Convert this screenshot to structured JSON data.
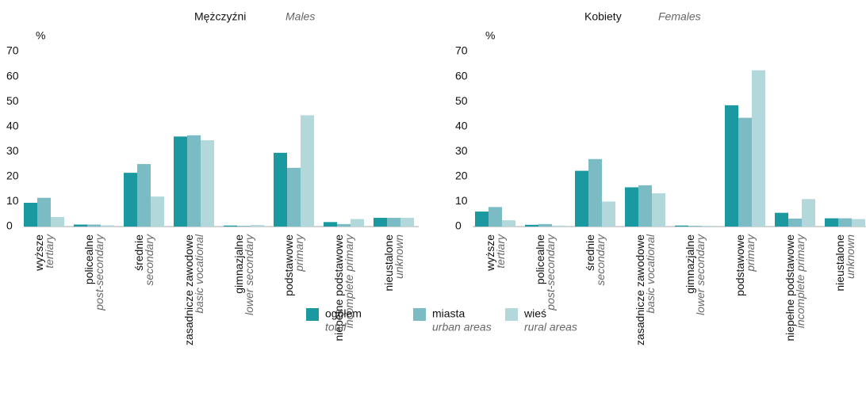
{
  "chart_data": [
    {
      "type": "bar",
      "title": "Mężczyźni",
      "subtitle": "Males",
      "ylabel": "%",
      "categories": [
        "wyższe",
        "policealne",
        "średnie",
        "zasadnicze zawodowe",
        "gimnazjalne",
        "podstawowe",
        "niepełne podstawowe",
        "nieustalone"
      ],
      "categories_en": [
        "tertiary",
        "post-secondary",
        "secondary",
        "basic vocational",
        "lower secondary",
        "primary",
        "incomplete primary",
        "unknown"
      ],
      "ylim": [
        0,
        70
      ],
      "yticks": [
        0,
        10,
        20,
        30,
        40,
        50,
        60,
        70
      ],
      "series": [
        {
          "name": "ogółem",
          "name_en": "total",
          "color": "#1a9aa0",
          "values": [
            9.5,
            0.8,
            21.5,
            36,
            0.4,
            29.5,
            1.8,
            3.5
          ]
        },
        {
          "name": "miasta",
          "name_en": "urban areas",
          "color": "#7bbcc4",
          "values": [
            11.5,
            0.8,
            25,
            36.5,
            0.3,
            23.5,
            1,
            3.5
          ]
        },
        {
          "name": "wieś",
          "name_en": "rural areas",
          "color": "#b3d8dc",
          "values": [
            3.8,
            0.5,
            12,
            34.5,
            0.6,
            44.5,
            3,
            3.5
          ]
        }
      ]
    },
    {
      "type": "bar",
      "title": "Kobiety",
      "subtitle": "Females",
      "ylabel": "%",
      "categories": [
        "wyższe",
        "policealne",
        "średnie",
        "zasadnicze zawodowe",
        "gimnazjalne",
        "podstawowe",
        "niepełne podstawowe",
        "nieustalone"
      ],
      "categories_en": [
        "tertiary",
        "post-secondary",
        "secondary",
        "basic vocational",
        "lower secondary",
        "primary",
        "incomplete primary",
        "unknown"
      ],
      "ylim": [
        0,
        70
      ],
      "yticks": [
        0,
        10,
        20,
        30,
        40,
        50,
        60,
        70
      ],
      "series": [
        {
          "name": "ogółem",
          "name_en": "total",
          "color": "#1a9aa0",
          "values": [
            6,
            0.7,
            22.3,
            15.7,
            0.4,
            48.5,
            5.5,
            3.3
          ]
        },
        {
          "name": "miasta",
          "name_en": "urban areas",
          "color": "#7bbcc4",
          "values": [
            7.8,
            1,
            27,
            16.5,
            0.3,
            43.5,
            3.2,
            3.3
          ]
        },
        {
          "name": "wieś",
          "name_en": "rural areas",
          "color": "#b3d8dc",
          "values": [
            2.5,
            0.4,
            10,
            13.3,
            0.3,
            62.5,
            11,
            3
          ]
        }
      ]
    }
  ]
}
